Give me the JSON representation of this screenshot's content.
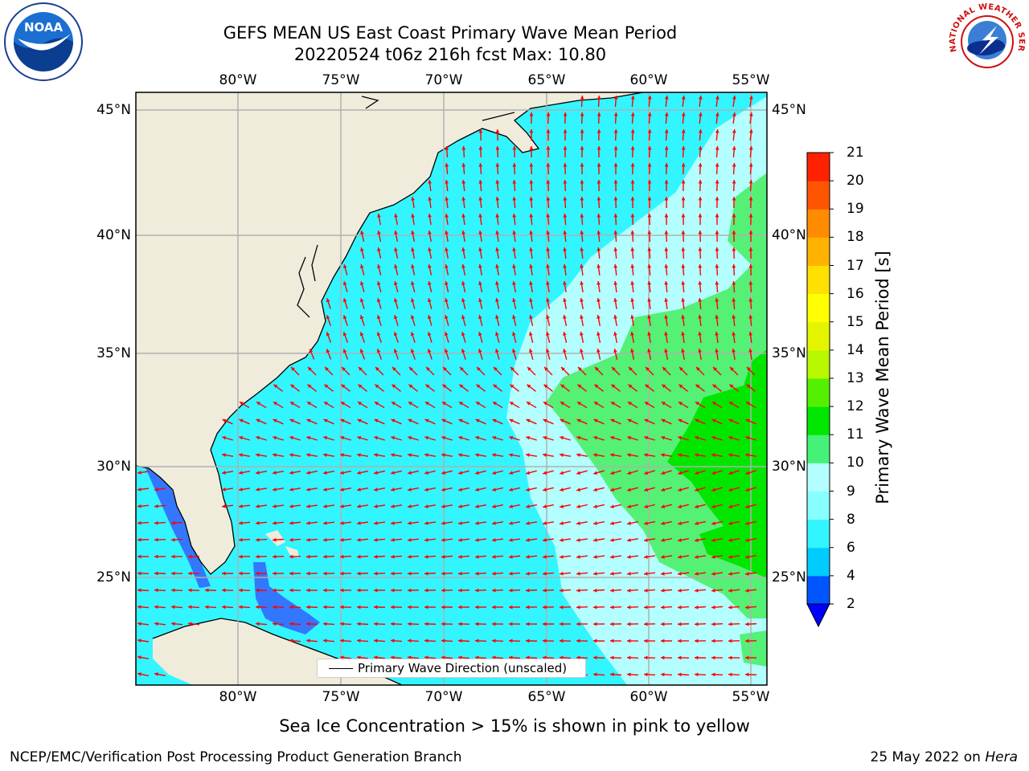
{
  "title": {
    "line1": "GEFS MEAN US East Coast Primary Wave Mean Period",
    "line2": "20220524 t06z 216h fcst   Max: 10.80"
  },
  "axes": {
    "lon_labels": [
      "80°W",
      "75°W",
      "70°W",
      "65°W",
      "60°W",
      "55°W"
    ],
    "lat_labels": [
      "45°N",
      "40°N",
      "35°N",
      "30°N",
      "25°N"
    ]
  },
  "legend": {
    "label": "Primary Wave Direction (unscaled)"
  },
  "colorbar": {
    "label": "Primary Wave Mean Period [s]",
    "ticks": [
      "2",
      "4",
      "6",
      "8",
      "9",
      "10",
      "11",
      "12",
      "13",
      "14",
      "15",
      "16",
      "17",
      "18",
      "19",
      "20",
      "21"
    ],
    "colors": [
      "#0055ff",
      "#00ccff",
      "#33f5ff",
      "#88ffff",
      "#b3ffff",
      "#44f277",
      "#00e600",
      "#55f000",
      "#b7f700",
      "#e5f500",
      "#ffff00",
      "#ffe000",
      "#ffb300",
      "#ff8c00",
      "#ff5500",
      "#ff2200",
      "#ff0000"
    ],
    "under_color": "#0000ff"
  },
  "map_colors": {
    "land": "#efecdc",
    "ocean_base": "#33f5ff",
    "deep_blue": "#3377ff",
    "pale": "#b3ffff",
    "light_green": "#55f076",
    "green": "#00e600",
    "arrow": "#ff0000",
    "grid": "#b0b0b0"
  },
  "note": "Sea Ice Concentration > 15% is shown in pink to yellow",
  "footer": {
    "left": "NCEP/EMC/Verification Post Processing Product Generation Branch",
    "date": "25 May 2022 on",
    "host": "Hera"
  },
  "logos": {
    "noaa_text": "NOAA",
    "nws_text": "NATIONAL WEATHER SERVICE"
  }
}
